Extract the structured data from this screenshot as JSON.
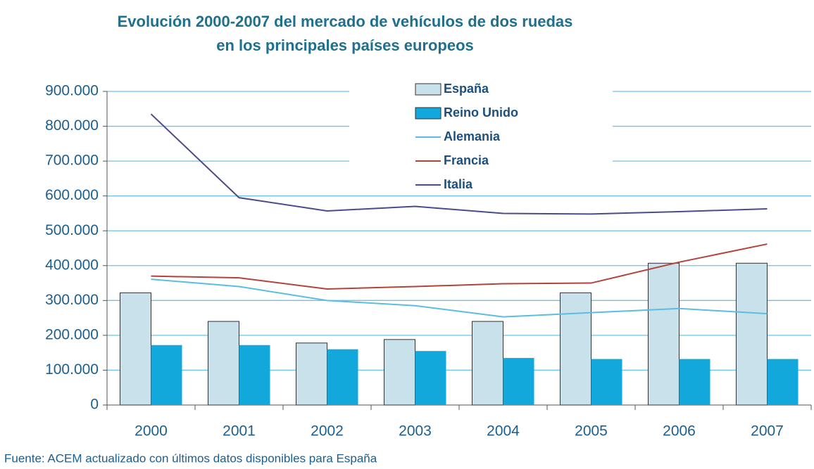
{
  "chart_data": {
    "type": "bar",
    "title": [
      "Evolución 2000-2007 del mercado de vehículos de dos ruedas",
      "en los principales países europeos"
    ],
    "source": "Fuente: ACEM actualizado con últimos datos disponibles para España",
    "categories": [
      "2000",
      "2001",
      "2002",
      "2003",
      "2004",
      "2005",
      "2006",
      "2007"
    ],
    "series": [
      {
        "name": "España",
        "type": "bar",
        "color": "#c9e1ea",
        "values": [
          322000,
          240000,
          178000,
          188000,
          240000,
          322000,
          407000,
          407000
        ]
      },
      {
        "name": "Reino Unido",
        "type": "bar",
        "color": "#12a8dc",
        "values": [
          172000,
          172000,
          160000,
          155000,
          135000,
          132000,
          132000,
          132000
        ]
      },
      {
        "name": "Alemania",
        "type": "line",
        "color": "#5cbde2",
        "values": [
          361000,
          340000,
          300000,
          285000,
          253000,
          265000,
          277000,
          262000
        ]
      },
      {
        "name": "Francia",
        "type": "line",
        "color": "#b4433c",
        "values": [
          370000,
          365000,
          333000,
          340000,
          348000,
          350000,
          410000,
          462000
        ]
      },
      {
        "name": "Italia",
        "type": "line",
        "color": "#4b4b8c",
        "values": [
          835000,
          595000,
          557000,
          570000,
          550000,
          548000,
          555000,
          563000
        ]
      }
    ],
    "ylim": [
      0,
      900000
    ],
    "yticks": [
      0,
      {
        "value": 100000,
        "label": "100.000"
      },
      {
        "value": 200000,
        "label": "200.000"
      },
      {
        "value": 300000,
        "label": "300.000"
      },
      {
        "value": 400000,
        "label": "400.000"
      },
      {
        "value": 500000,
        "label": "500.000"
      },
      {
        "value": 600000,
        "label": "600.000"
      },
      {
        "value": 700000,
        "label": "700.000"
      },
      {
        "value": 800000,
        "label": "800.000"
      },
      {
        "value": 900000,
        "label": "900.000"
      }
    ],
    "grid": true,
    "legend": "top"
  }
}
